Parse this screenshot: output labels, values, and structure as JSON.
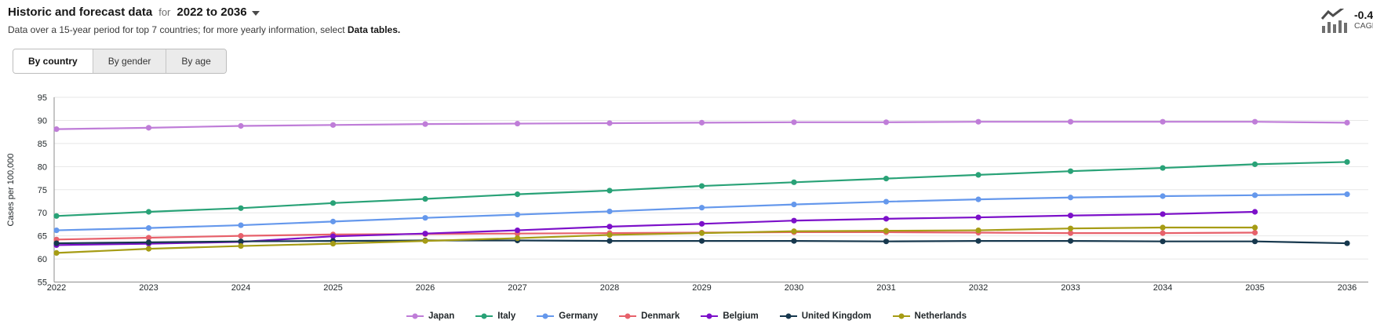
{
  "header": {
    "title": "Historic and forecast data",
    "for_label": "for",
    "range_label": "2022 to 2036",
    "subtitle_prefix": "Data over a 15-year period for top 7 countries; for more yearly information, select ",
    "subtitle_bold": "Data tables.",
    "cagr_value": "-0.4",
    "cagr_label": "CAGR ("
  },
  "tabs": [
    {
      "label": "By country",
      "active": true
    },
    {
      "label": "By gender",
      "active": false
    },
    {
      "label": "By age",
      "active": false
    }
  ],
  "chart_data": {
    "type": "line",
    "title": "",
    "xlabel": "",
    "ylabel": "Cases per 100,000",
    "x": [
      2022,
      2023,
      2024,
      2025,
      2026,
      2027,
      2028,
      2029,
      2030,
      2031,
      2032,
      2033,
      2034,
      2035,
      2036
    ],
    "ylim": [
      55,
      95
    ],
    "ytick_step": 5,
    "grid": "horizontal",
    "legend_position": "bottom",
    "series": [
      {
        "name": "Japan",
        "color": "#bf7dd8",
        "values": [
          88.1,
          88.4,
          88.8,
          89.0,
          89.2,
          89.3,
          89.4,
          89.5,
          89.6,
          89.6,
          89.7,
          89.7,
          89.7,
          89.7,
          89.5
        ]
      },
      {
        "name": "Italy",
        "color": "#29a277",
        "values": [
          69.3,
          70.2,
          71.0,
          72.1,
          73.0,
          74.0,
          74.8,
          75.8,
          76.6,
          77.4,
          78.2,
          79.0,
          79.7,
          80.5,
          81.0
        ]
      },
      {
        "name": "Germany",
        "color": "#6598ec",
        "values": [
          66.2,
          66.7,
          67.3,
          68.1,
          68.9,
          69.6,
          70.3,
          71.1,
          71.8,
          72.4,
          72.9,
          73.3,
          73.6,
          73.8,
          74.0
        ]
      },
      {
        "name": "Denmark",
        "color": "#e7616b",
        "values": [
          64.2,
          64.6,
          65.0,
          65.3,
          65.4,
          65.5,
          65.6,
          65.7,
          65.8,
          65.8,
          65.7,
          65.6,
          65.6,
          65.7,
          null
        ]
      },
      {
        "name": "Belgium",
        "color": "#7c10c9",
        "values": [
          63.0,
          63.3,
          63.7,
          64.9,
          65.5,
          66.2,
          67.0,
          67.6,
          68.3,
          68.7,
          69.0,
          69.4,
          69.7,
          70.2,
          null
        ]
      },
      {
        "name": "United Kingdom",
        "color": "#17384e",
        "values": [
          63.4,
          63.6,
          63.8,
          63.9,
          64.0,
          64.0,
          63.9,
          63.9,
          63.9,
          63.8,
          63.9,
          63.9,
          63.8,
          63.8,
          63.4
        ]
      },
      {
        "name": "Netherlands",
        "color": "#a69c15",
        "values": [
          61.3,
          62.2,
          62.8,
          63.3,
          63.9,
          64.5,
          65.2,
          65.6,
          66.0,
          66.1,
          66.2,
          66.6,
          66.8,
          66.8,
          null
        ]
      }
    ]
  }
}
